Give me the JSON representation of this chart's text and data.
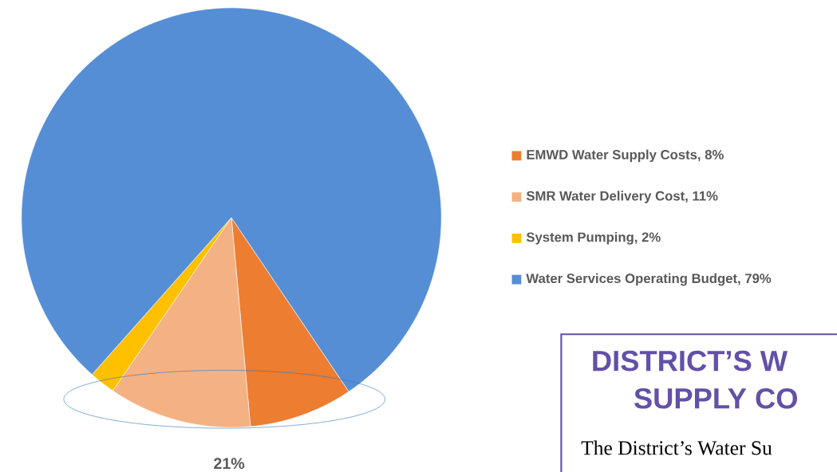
{
  "chart_data": {
    "type": "pie",
    "categories": [
      "EMWD Water Supply Costs, 8%",
      "SMR Water Delivery Cost, 11%",
      "System Pumping, 2%",
      "Water Services Operating Budget, 79%"
    ],
    "values": [
      8,
      11,
      2,
      79
    ],
    "colors": [
      "#ed7d31",
      "#f4b183",
      "#ffc000",
      "#558ed5"
    ],
    "legend": "right",
    "annotations": [
      "21%",
      "DISTRICT’S W",
      "SUPPLY CO",
      "The District’s Water Su"
    ]
  }
}
